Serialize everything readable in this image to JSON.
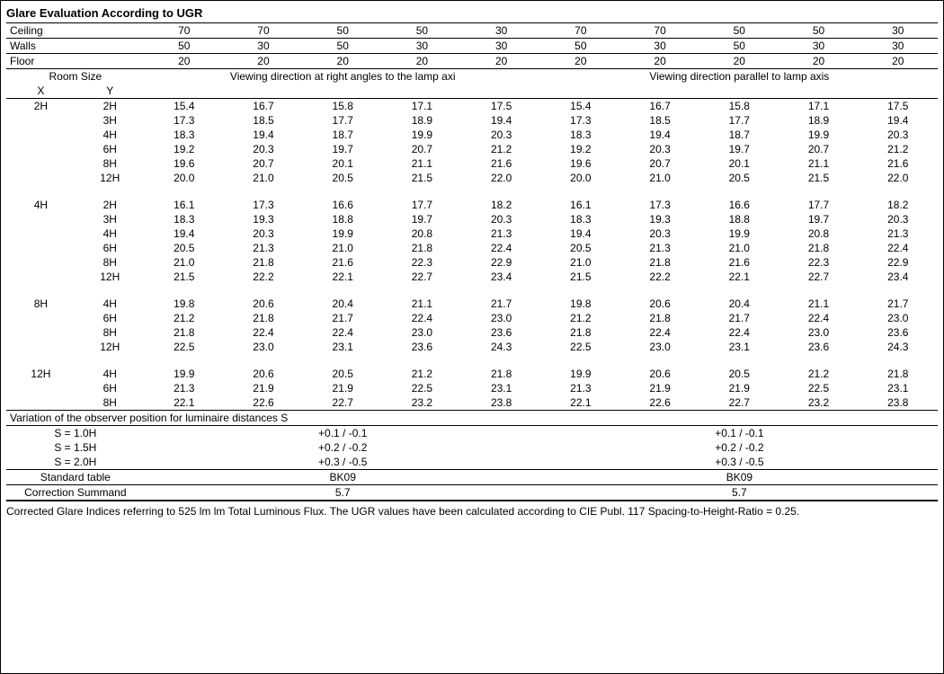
{
  "title": "Glare Evaluation According to UGR",
  "headers": {
    "labels": {
      "ceiling": "Ceiling",
      "walls": "Walls",
      "floor": "Floor"
    },
    "ceiling": [
      "70",
      "70",
      "50",
      "50",
      "30",
      "70",
      "70",
      "50",
      "50",
      "30"
    ],
    "walls": [
      "50",
      "30",
      "50",
      "30",
      "30",
      "50",
      "30",
      "50",
      "30",
      "30"
    ],
    "floor": [
      "20",
      "20",
      "20",
      "20",
      "20",
      "20",
      "20",
      "20",
      "20",
      "20"
    ]
  },
  "room_size_label": "Room Size",
  "x_label": "X",
  "y_label": "Y",
  "direction_left": "Viewing direction at right angles to the lamp axi",
  "direction_right": "Viewing direction parallel to lamp axis",
  "groups": [
    {
      "x": "2H",
      "rows": [
        {
          "y": "2H",
          "v": [
            "15.4",
            "16.7",
            "15.8",
            "17.1",
            "17.5",
            "15.4",
            "16.7",
            "15.8",
            "17.1",
            "17.5"
          ]
        },
        {
          "y": "3H",
          "v": [
            "17.3",
            "18.5",
            "17.7",
            "18.9",
            "19.4",
            "17.3",
            "18.5",
            "17.7",
            "18.9",
            "19.4"
          ]
        },
        {
          "y": "4H",
          "v": [
            "18.3",
            "19.4",
            "18.7",
            "19.9",
            "20.3",
            "18.3",
            "19.4",
            "18.7",
            "19.9",
            "20.3"
          ]
        },
        {
          "y": "6H",
          "v": [
            "19.2",
            "20.3",
            "19.7",
            "20.7",
            "21.2",
            "19.2",
            "20.3",
            "19.7",
            "20.7",
            "21.2"
          ]
        },
        {
          "y": "8H",
          "v": [
            "19.6",
            "20.7",
            "20.1",
            "21.1",
            "21.6",
            "19.6",
            "20.7",
            "20.1",
            "21.1",
            "21.6"
          ]
        },
        {
          "y": "12H",
          "v": [
            "20.0",
            "21.0",
            "20.5",
            "21.5",
            "22.0",
            "20.0",
            "21.0",
            "20.5",
            "21.5",
            "22.0"
          ]
        }
      ]
    },
    {
      "x": "4H",
      "rows": [
        {
          "y": "2H",
          "v": [
            "16.1",
            "17.3",
            "16.6",
            "17.7",
            "18.2",
            "16.1",
            "17.3",
            "16.6",
            "17.7",
            "18.2"
          ]
        },
        {
          "y": "3H",
          "v": [
            "18.3",
            "19.3",
            "18.8",
            "19.7",
            "20.3",
            "18.3",
            "19.3",
            "18.8",
            "19.7",
            "20.3"
          ]
        },
        {
          "y": "4H",
          "v": [
            "19.4",
            "20.3",
            "19.9",
            "20.8",
            "21.3",
            "19.4",
            "20.3",
            "19.9",
            "20.8",
            "21.3"
          ]
        },
        {
          "y": "6H",
          "v": [
            "20.5",
            "21.3",
            "21.0",
            "21.8",
            "22.4",
            "20.5",
            "21.3",
            "21.0",
            "21.8",
            "22.4"
          ]
        },
        {
          "y": "8H",
          "v": [
            "21.0",
            "21.8",
            "21.6",
            "22.3",
            "22.9",
            "21.0",
            "21.8",
            "21.6",
            "22.3",
            "22.9"
          ]
        },
        {
          "y": "12H",
          "v": [
            "21.5",
            "22.2",
            "22.1",
            "22.7",
            "23.4",
            "21.5",
            "22.2",
            "22.1",
            "22.7",
            "23.4"
          ]
        }
      ]
    },
    {
      "x": "8H",
      "rows": [
        {
          "y": "4H",
          "v": [
            "19.8",
            "20.6",
            "20.4",
            "21.1",
            "21.7",
            "19.8",
            "20.6",
            "20.4",
            "21.1",
            "21.7"
          ]
        },
        {
          "y": "6H",
          "v": [
            "21.2",
            "21.8",
            "21.7",
            "22.4",
            "23.0",
            "21.2",
            "21.8",
            "21.7",
            "22.4",
            "23.0"
          ]
        },
        {
          "y": "8H",
          "v": [
            "21.8",
            "22.4",
            "22.4",
            "23.0",
            "23.6",
            "21.8",
            "22.4",
            "22.4",
            "23.0",
            "23.6"
          ]
        },
        {
          "y": "12H",
          "v": [
            "22.5",
            "23.0",
            "23.1",
            "23.6",
            "24.3",
            "22.5",
            "23.0",
            "23.1",
            "23.6",
            "24.3"
          ]
        }
      ]
    },
    {
      "x": "12H",
      "rows": [
        {
          "y": "4H",
          "v": [
            "19.9",
            "20.6",
            "20.5",
            "21.2",
            "21.8",
            "19.9",
            "20.6",
            "20.5",
            "21.2",
            "21.8"
          ]
        },
        {
          "y": "6H",
          "v": [
            "21.3",
            "21.9",
            "21.9",
            "22.5",
            "23.1",
            "21.3",
            "21.9",
            "21.9",
            "22.5",
            "23.1"
          ]
        },
        {
          "y": "8H",
          "v": [
            "22.1",
            "22.6",
            "22.7",
            "23.2",
            "23.8",
            "22.1",
            "22.6",
            "22.7",
            "23.2",
            "23.8"
          ]
        }
      ]
    }
  ],
  "variation": {
    "header": "Variation of the observer position for luminaire distances S",
    "rows": [
      {
        "label": "S = 1.0H",
        "left": "+0.1 / -0.1",
        "right": "+0.1 / -0.1"
      },
      {
        "label": "S = 1.5H",
        "left": "+0.2 / -0.2",
        "right": "+0.2 / -0.2"
      },
      {
        "label": "S = 2.0H",
        "left": "+0.3 / -0.5",
        "right": "+0.3 / -0.5"
      }
    ]
  },
  "standard": {
    "label1": "Standard table",
    "left1": "BK09",
    "right1": "BK09",
    "label2": "Correction Summand",
    "left2": "5.7",
    "right2": "5.7"
  },
  "footnote": "Corrected Glare Indices referring to 525 lm lm Total Luminous Flux. The UGR values have been calculated according to CIE Publ. 117    Spacing-to-Height-Ratio = 0.25."
}
